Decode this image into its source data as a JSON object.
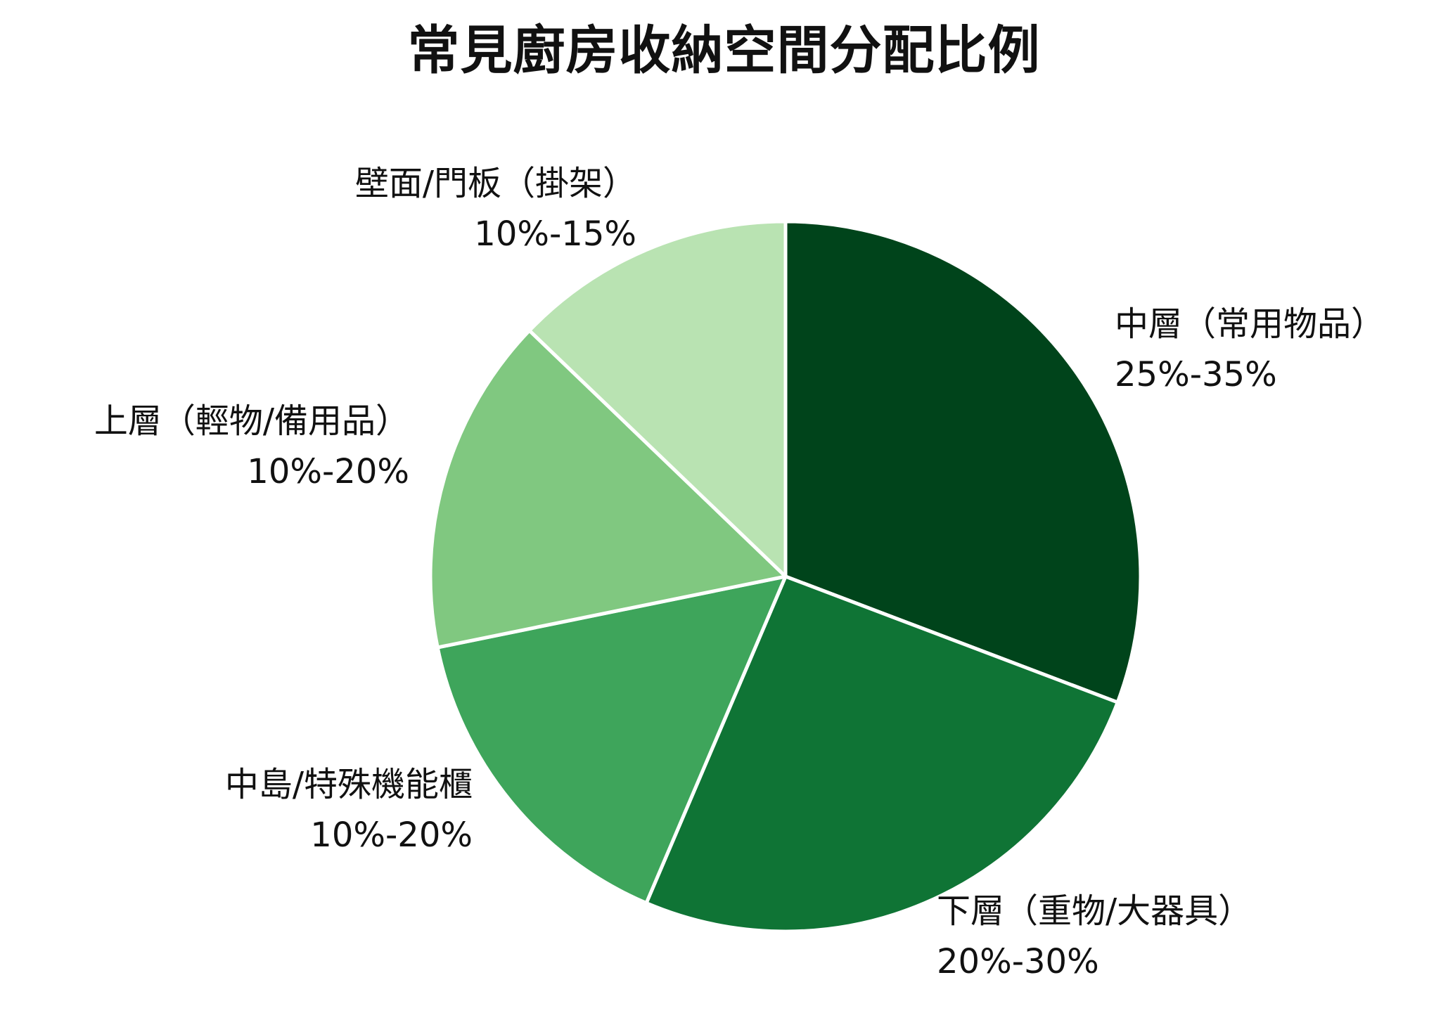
{
  "title": "常見廚房收納空間分配比例",
  "chart_data": {
    "type": "pie",
    "title": "常見廚房收納空間分配比例",
    "start_angle_deg": 0,
    "direction": "clockwise",
    "slices": [
      {
        "name": "中層（常用物品）",
        "range": "25%-35%",
        "value": 30,
        "color": "#00441b"
      },
      {
        "name": "下層（重物/大器具）",
        "range": "20%-30%",
        "value": 25,
        "color": "#0f7435"
      },
      {
        "name": "中島/特殊機能櫃",
        "range": "10%-20%",
        "value": 15,
        "color": "#3ea55b"
      },
      {
        "name": "上層（輕物/備用品）",
        "range": "10%-20%",
        "value": 15,
        "color": "#80c880"
      },
      {
        "name": "壁面/門板（掛架）",
        "range": "10%-15%",
        "value": 12.5,
        "color": "#b9e3b2"
      }
    ]
  }
}
